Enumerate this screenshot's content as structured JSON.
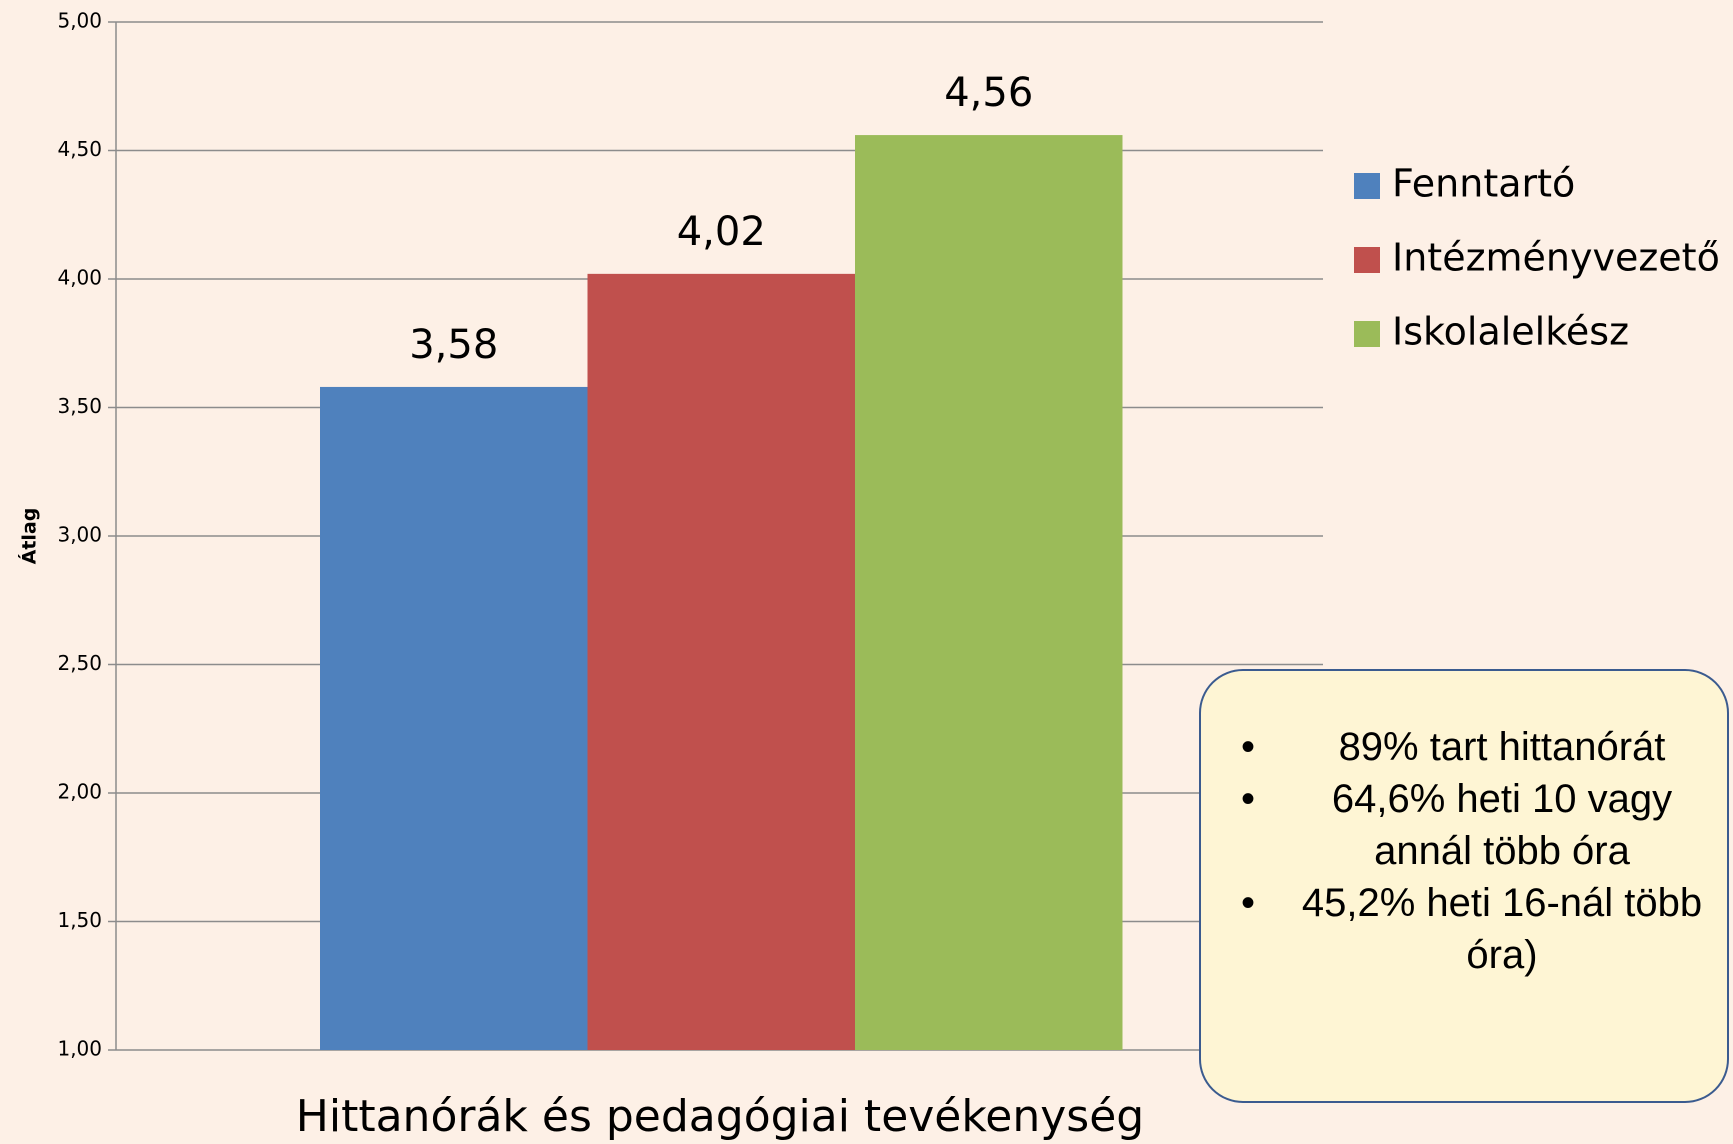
{
  "chart_data": {
    "type": "bar",
    "categories": [
      "Hittanórák és pedagógiai tevékenység"
    ],
    "series": [
      {
        "name": "Fenntartó",
        "color": "#4f81bd",
        "values": [
          3.58
        ],
        "value_labels": [
          "3,58"
        ]
      },
      {
        "name": "Intézményvezető",
        "color": "#c0504d",
        "values": [
          4.02
        ],
        "value_labels": [
          "4,02"
        ]
      },
      {
        "name": "Iskolalelkész",
        "color": "#9bbb59",
        "values": [
          4.56
        ],
        "value_labels": [
          "4,56"
        ]
      }
    ],
    "ylabel": "Átlag",
    "ylim": [
      1,
      5
    ],
    "yticks": [
      {
        "value": 1,
        "label": "1,00"
      },
      {
        "value": 1.5,
        "label": "1,50"
      },
      {
        "value": 2,
        "label": "2,00"
      },
      {
        "value": 2.5,
        "label": "2,50"
      },
      {
        "value": 3,
        "label": "3,00"
      },
      {
        "value": 3.5,
        "label": "3,50"
      },
      {
        "value": 4,
        "label": "4,00"
      },
      {
        "value": 4.5,
        "label": "4,50"
      },
      {
        "value": 5,
        "label": "5,00"
      }
    ],
    "grid": true,
    "legend": "right",
    "annotation": [
      "89% tart hittanórát",
      "64,6% heti 10 vagy annál több óra",
      "45,2% heti 16-nál több óra)"
    ]
  }
}
